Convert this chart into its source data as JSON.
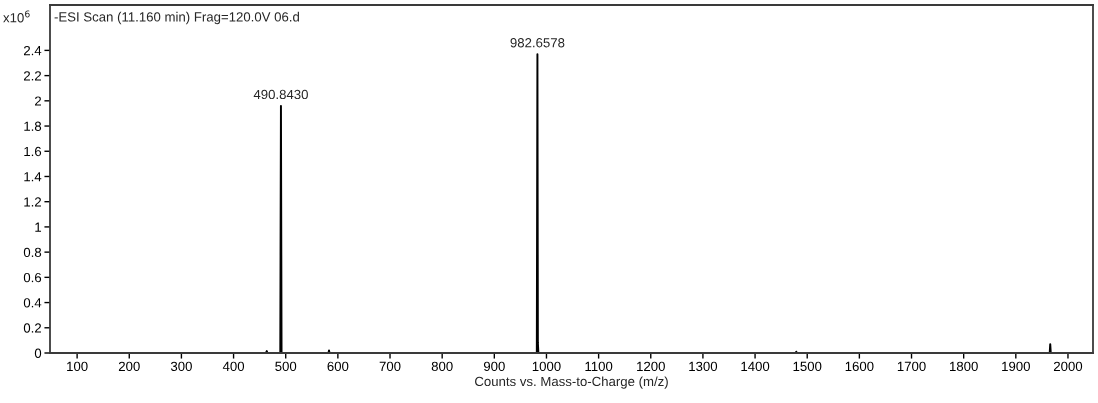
{
  "chart_data": {
    "type": "line",
    "title": "-ESI Scan (11.160 min) Frag=120.0V 06.d",
    "xlabel": "Counts vs. Mass-to-Charge (m/z)",
    "ylabel": "x10$^{6}$",
    "series": [
      {
        "color": "#000000",
        "x": [
          100,
          462,
          463.7,
          465,
          489.6,
          490.843,
          492,
          582,
          583,
          584,
          981.5,
          982.6578,
          983.5,
          984.5,
          1478,
          1479,
          1480,
          1965,
          1966,
          1967,
          2000
        ],
        "values": [
          0,
          0,
          0.015,
          0,
          0,
          1.96,
          0,
          0,
          0.02,
          0,
          0,
          2.37,
          0.08,
          0,
          0,
          0.01,
          0,
          0,
          0.07,
          0,
          0
        ]
      }
    ],
    "xlim": [
      48,
      2048
    ],
    "xticks": [
      100,
      200,
      300,
      400,
      500,
      600,
      700,
      800,
      900,
      1000,
      1100,
      1200,
      1300,
      1400,
      1500,
      1600,
      1700,
      1800,
      1900,
      2000
    ],
    "ylim": [
      0,
      2.76
    ],
    "yticks": [
      0,
      0.2,
      0.4,
      0.6,
      0.8,
      1,
      1.2,
      1.4,
      1.6,
      1.8,
      2,
      2.2,
      2.4
    ],
    "annotations": [
      {
        "text": "490.8430",
        "x": 490.843,
        "y": 1.96
      },
      {
        "text": "982.6578",
        "x": 982.6578,
        "y": 2.37
      }
    ],
    "grid": false,
    "marker": "none",
    "line_style": "solid"
  }
}
